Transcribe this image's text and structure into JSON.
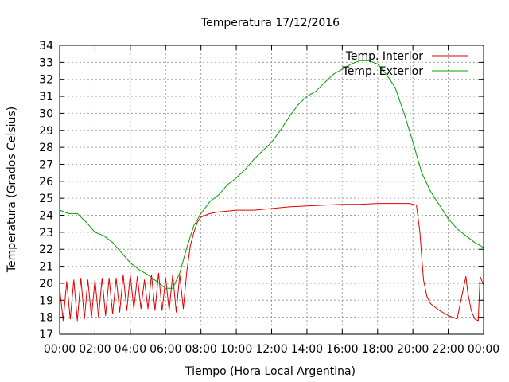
{
  "chart_data": {
    "type": "line",
    "title": "Temperatura 17/12/2016",
    "xlabel": "Tiempo (Hora Local Argentina)",
    "ylabel": "Temperatura (Grados Celsius)",
    "xlim": [
      0,
      24
    ],
    "ylim": [
      17,
      34
    ],
    "x_ticks": [
      "00:00",
      "02:00",
      "04:00",
      "06:00",
      "08:00",
      "10:00",
      "12:00",
      "14:00",
      "16:00",
      "18:00",
      "20:00",
      "22:00",
      "00:00"
    ],
    "y_ticks": [
      17,
      18,
      19,
      20,
      21,
      22,
      23,
      24,
      25,
      26,
      27,
      28,
      29,
      30,
      31,
      32,
      33,
      34
    ],
    "grid": true,
    "legend_position": "top-right",
    "series": [
      {
        "name": "Temp. Interior",
        "color": "#e00000",
        "x": [
          0,
          0.2,
          0.4,
          0.6,
          0.8,
          1.0,
          1.2,
          1.4,
          1.6,
          1.8,
          2.0,
          2.2,
          2.4,
          2.6,
          2.8,
          3.0,
          3.2,
          3.4,
          3.6,
          3.8,
          4.0,
          4.2,
          4.4,
          4.6,
          4.8,
          5.0,
          5.2,
          5.4,
          5.6,
          5.8,
          6.0,
          6.2,
          6.4,
          6.6,
          6.8,
          7.0,
          7.2,
          7.4,
          7.6,
          7.8,
          8.0,
          8.5,
          9.0,
          9.5,
          10.0,
          11.0,
          12.0,
          13.0,
          14.0,
          15.0,
          16.0,
          17.0,
          18.0,
          19.0,
          19.8,
          20.2,
          20.4,
          20.5,
          20.6,
          20.8,
          21.0,
          21.5,
          22.0,
          22.5,
          23.0,
          23.1,
          23.3,
          23.5,
          23.7,
          23.8,
          24.0
        ],
        "y": [
          19.7,
          17.8,
          20.1,
          17.9,
          20.2,
          17.8,
          20.3,
          17.9,
          20.2,
          18.0,
          20.2,
          18.0,
          20.3,
          18.1,
          20.3,
          18.2,
          20.3,
          18.3,
          20.5,
          18.4,
          20.5,
          18.5,
          20.4,
          18.5,
          20.2,
          18.5,
          20.5,
          18.4,
          20.6,
          18.4,
          20.3,
          18.4,
          20.5,
          18.3,
          20.5,
          18.5,
          20.7,
          22.2,
          23.0,
          23.6,
          23.9,
          24.1,
          24.2,
          24.25,
          24.3,
          24.3,
          24.4,
          24.5,
          24.55,
          24.6,
          24.65,
          24.65,
          24.7,
          24.7,
          24.7,
          24.6,
          23.0,
          21.5,
          20.2,
          19.2,
          18.8,
          18.4,
          18.1,
          17.9,
          20.4,
          19.5,
          18.4,
          17.9,
          17.8,
          20.4,
          19.9
        ]
      },
      {
        "name": "Temp. Exterior",
        "color": "#00a000",
        "x": [
          0,
          0.5,
          1.0,
          1.5,
          2.0,
          2.5,
          3.0,
          3.5,
          4.0,
          4.5,
          5.0,
          5.5,
          6.0,
          6.4,
          6.8,
          7.2,
          7.6,
          8.0,
          8.5,
          9.0,
          9.5,
          10.0,
          10.5,
          11.0,
          11.5,
          12.0,
          12.5,
          13.0,
          13.5,
          14.0,
          14.5,
          15.0,
          15.5,
          16.0,
          16.5,
          17.0,
          17.5,
          18.0,
          18.5,
          19.0,
          19.5,
          20.0,
          20.5,
          21.0,
          21.5,
          22.0,
          22.5,
          23.0,
          23.5,
          24.0
        ],
        "y": [
          24.3,
          24.1,
          24.1,
          23.6,
          23.0,
          22.8,
          22.4,
          21.8,
          21.2,
          20.8,
          20.5,
          20.1,
          19.7,
          19.7,
          20.6,
          22.1,
          23.4,
          24.1,
          24.8,
          25.2,
          25.8,
          26.2,
          26.7,
          27.3,
          27.8,
          28.3,
          29.0,
          29.8,
          30.5,
          31.0,
          31.3,
          31.8,
          32.3,
          32.6,
          32.9,
          33.1,
          33.1,
          32.9,
          32.3,
          31.5,
          30.0,
          28.3,
          26.5,
          25.4,
          24.6,
          23.8,
          23.2,
          22.8,
          22.4,
          22.1
        ]
      }
    ]
  }
}
